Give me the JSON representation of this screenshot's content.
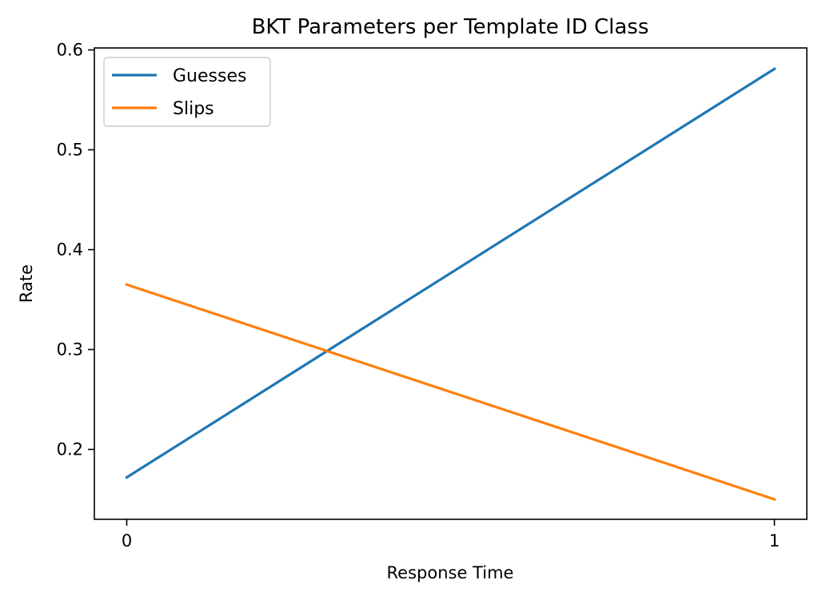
{
  "chart_data": {
    "type": "line",
    "title": "BKT Parameters per Template ID Class",
    "xlabel": "Response Time",
    "ylabel": "Rate",
    "x": [
      0,
      1
    ],
    "x_ticks": [
      "0",
      "1"
    ],
    "xlim": [
      -0.05,
      1.05
    ],
    "ylim": [
      0.13,
      0.602
    ],
    "y_ticks": [
      0.2,
      0.3,
      0.4,
      0.5,
      0.6
    ],
    "y_tick_labels": [
      "0.2",
      "0.3",
      "0.4",
      "0.5",
      "0.6"
    ],
    "grid": false,
    "legend_position": "top-left",
    "series": [
      {
        "name": "Guesses",
        "values": [
          0.172,
          0.581
        ],
        "color": "#1f77b4"
      },
      {
        "name": "Slips",
        "values": [
          0.365,
          0.15
        ],
        "color": "#ff7f0e"
      }
    ]
  }
}
